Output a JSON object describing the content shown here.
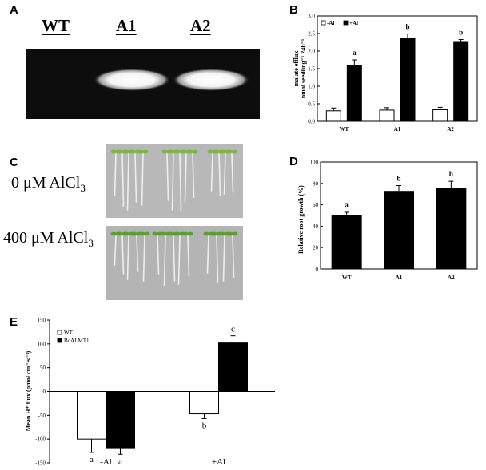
{
  "panels": {
    "A": {
      "letter": "A",
      "lanes": [
        "WT",
        "A1",
        "A2"
      ],
      "bands": [
        0,
        1,
        1
      ]
    },
    "B": {
      "letter": "B",
      "chart_data": {
        "type": "bar",
        "ylabel_line1": "malate efflux",
        "ylabel_line2": "nmol seedling⁻¹ 24h⁻¹",
        "ylim": [
          0,
          3.0
        ],
        "yticks": [
          "0.0",
          "0.5",
          "1.0",
          "1.5",
          "2.0",
          "2.5",
          "3.0"
        ],
        "categories": [
          "WT",
          "A1",
          "A2"
        ],
        "series": [
          {
            "name": "-Al",
            "values": [
              0.3,
              0.32,
              0.33
            ],
            "errors": [
              0.08,
              0.07,
              0.07
            ],
            "color": "#ffffff"
          },
          {
            "name": "+Al",
            "values": [
              1.6,
              2.37,
              2.25
            ],
            "errors": [
              0.15,
              0.12,
              0.08
            ],
            "color": "#000000"
          }
        ],
        "letters": [
          "a",
          "b",
          "b"
        ],
        "legend": [
          "-Al",
          "+Al"
        ]
      }
    },
    "C": {
      "letter": "C",
      "label_top": "0 μM AlCl",
      "label_bottom": "400 μM AlCl",
      "subscript": "3"
    },
    "D": {
      "letter": "D",
      "chart_data": {
        "type": "bar",
        "ylabel": "Relative root growth (%)",
        "ylim": [
          0,
          100
        ],
        "yticks": [
          "0",
          "20",
          "40",
          "60",
          "80",
          "100"
        ],
        "categories": [
          "WT",
          "A1",
          "A2"
        ],
        "values": [
          50,
          73,
          76
        ],
        "errors": [
          3,
          5,
          6
        ],
        "letters": [
          "a",
          "b",
          "b"
        ]
      }
    },
    "E": {
      "letter": "E",
      "chart_data": {
        "type": "bar",
        "ylabel": "Mean H⁺ flux (pmol cm⁻²s⁻¹)",
        "ylim": [
          -150,
          150
        ],
        "yticks": [
          "150",
          "100",
          "50",
          "0",
          "-50",
          "-100",
          "-150"
        ],
        "categories": [
          "-Al",
          "+Al"
        ],
        "series": [
          {
            "name": "WT",
            "values": [
              -100,
              -47
            ],
            "errors": [
              28,
              10
            ],
            "color": "#ffffff"
          },
          {
            "name": "BoALMT1",
            "values": [
              -120,
              102
            ],
            "errors": [
              12,
              15
            ],
            "color": "#000000"
          }
        ],
        "letters": [
          [
            "a",
            "a"
          ],
          [
            "b",
            "c"
          ]
        ],
        "legend": [
          "WT",
          "BoALMT1"
        ]
      }
    }
  }
}
